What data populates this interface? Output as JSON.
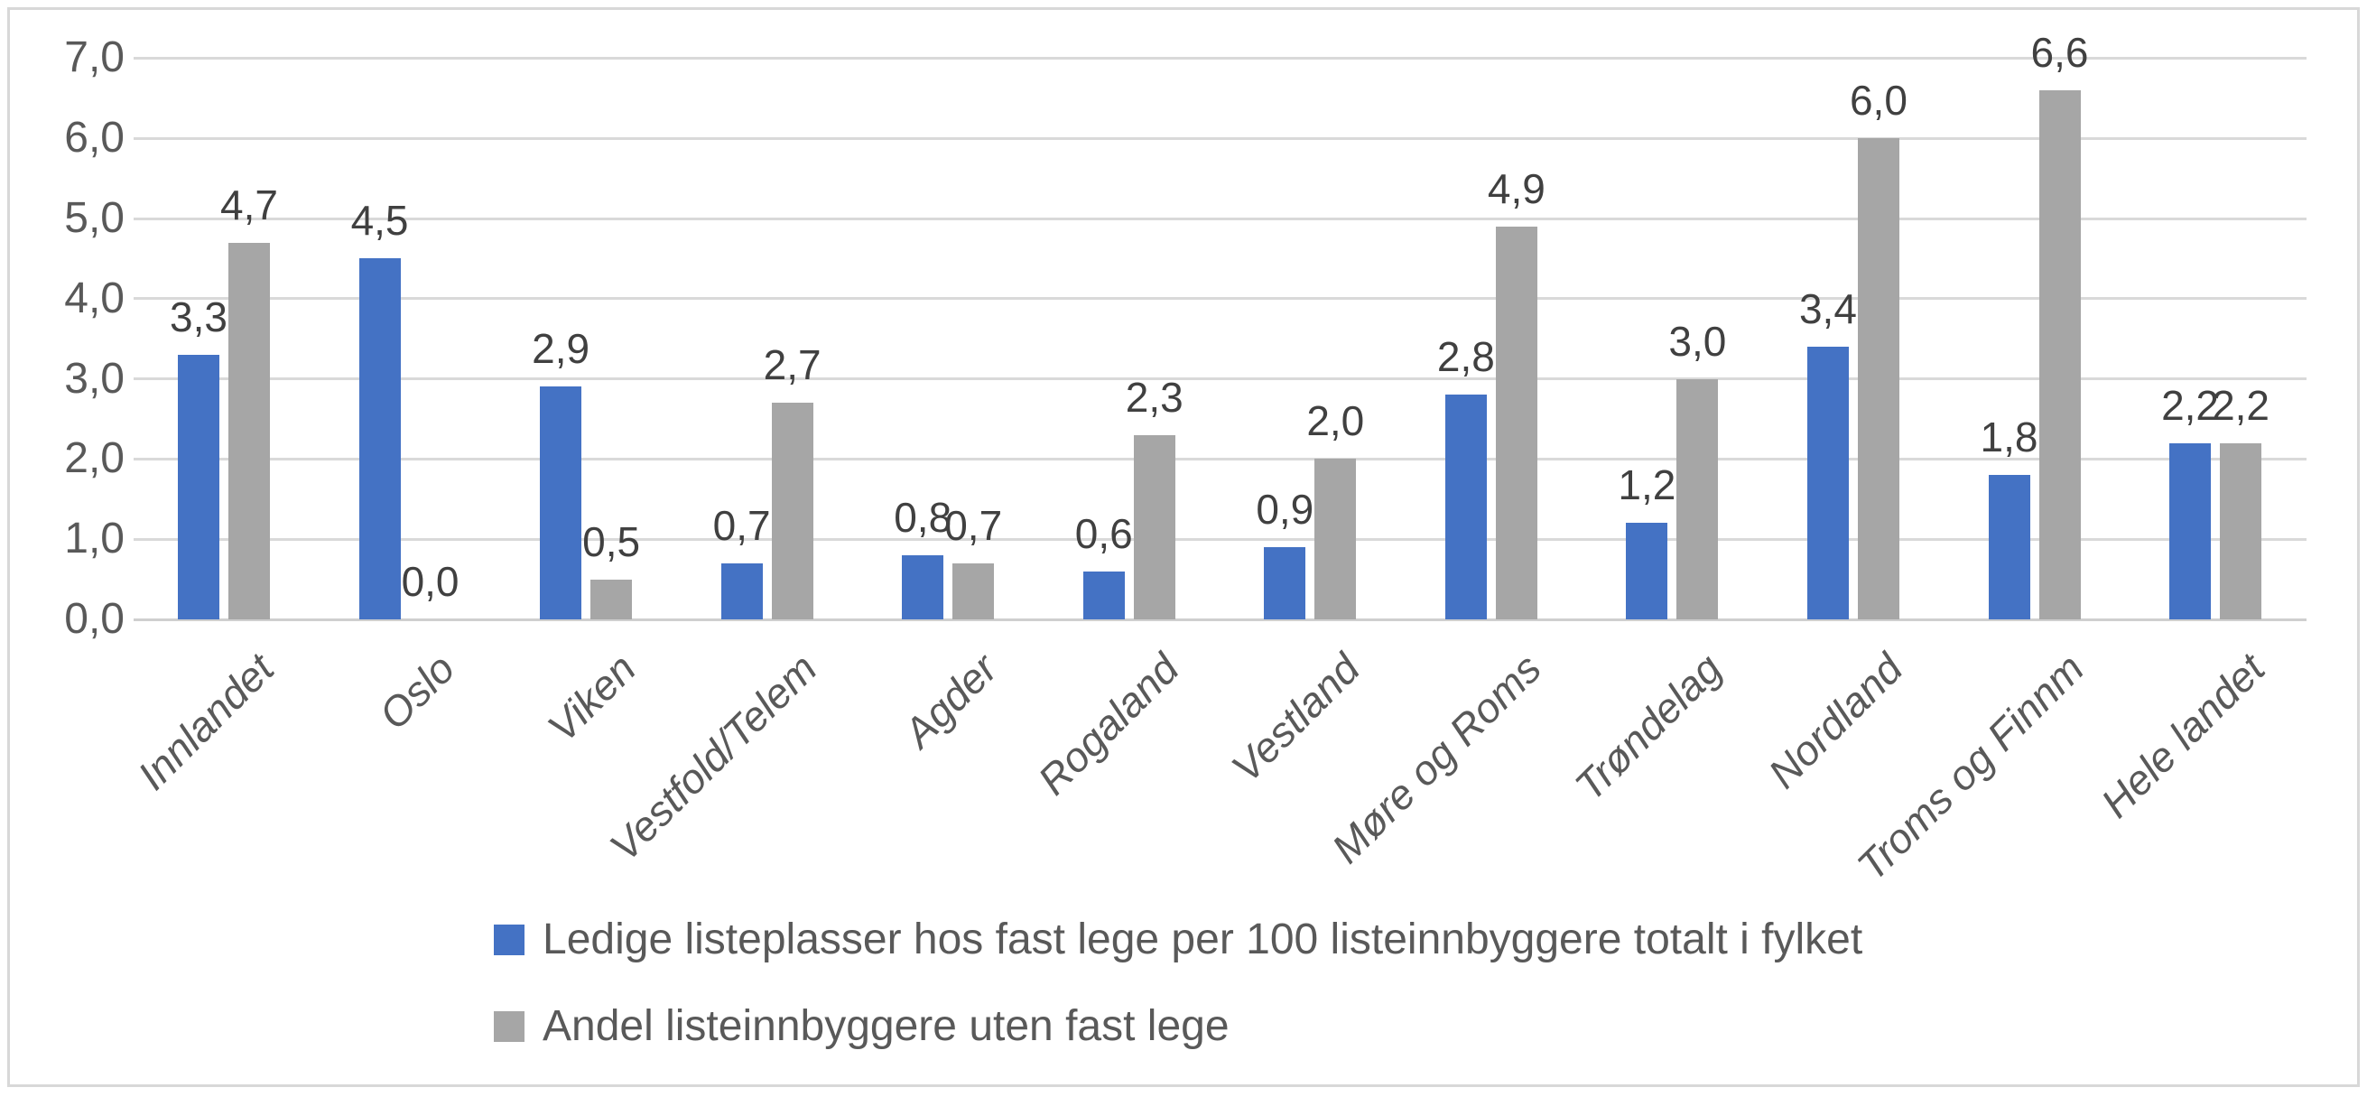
{
  "chart_data": {
    "type": "bar",
    "categories": [
      "Innlandet",
      "Oslo",
      "Viken",
      "Vestfold/Telem",
      "Agder",
      "Rogaland",
      "Vestland",
      "Møre og Roms",
      "Trøndelag",
      "Nordland",
      "Troms og Finnm",
      "Hele landet"
    ],
    "series": [
      {
        "name": "Ledige listeplasser hos fast lege per 100 listeinnbyggere totalt i fylket",
        "color": "#4472c4",
        "values": [
          3.3,
          4.5,
          2.9,
          0.7,
          0.8,
          0.6,
          0.9,
          2.8,
          1.2,
          3.4,
          1.8,
          2.2
        ],
        "labels": [
          "3,3",
          "4,5",
          "2,9",
          "0,7",
          "0,8",
          "0,6",
          "0,9",
          "2,8",
          "1,2",
          "3,4",
          "1,8",
          "2,2"
        ]
      },
      {
        "name": "Andel listeinnbyggere uten fast lege",
        "color": "#a6a6a6",
        "values": [
          4.7,
          0.0,
          0.5,
          2.7,
          0.7,
          2.3,
          2.0,
          4.9,
          3.0,
          6.0,
          6.6,
          2.2
        ],
        "labels": [
          "4,7",
          "0,0",
          "0,5",
          "2,7",
          "0,7",
          "2,3",
          "2,0",
          "4,9",
          "3,0",
          "6,0",
          "6,6",
          "2,2"
        ]
      }
    ],
    "title": "",
    "xlabel": "",
    "ylabel": "",
    "ylim": [
      0,
      7
    ],
    "ytick_step": 1,
    "ytick_labels": [
      "0,0",
      "1,0",
      "2,0",
      "3,0",
      "4,0",
      "5,0",
      "6,0",
      "7,0"
    ],
    "grid": true,
    "legend_position": "bottom-left"
  },
  "colors": {
    "series_blue": "#4472c4",
    "series_gray": "#a6a6a6",
    "gridline": "#d9d9d9",
    "axis_text": "#595959",
    "data_label_text": "#404040",
    "frame_border": "#d8d8d8",
    "background": "#ffffff"
  }
}
